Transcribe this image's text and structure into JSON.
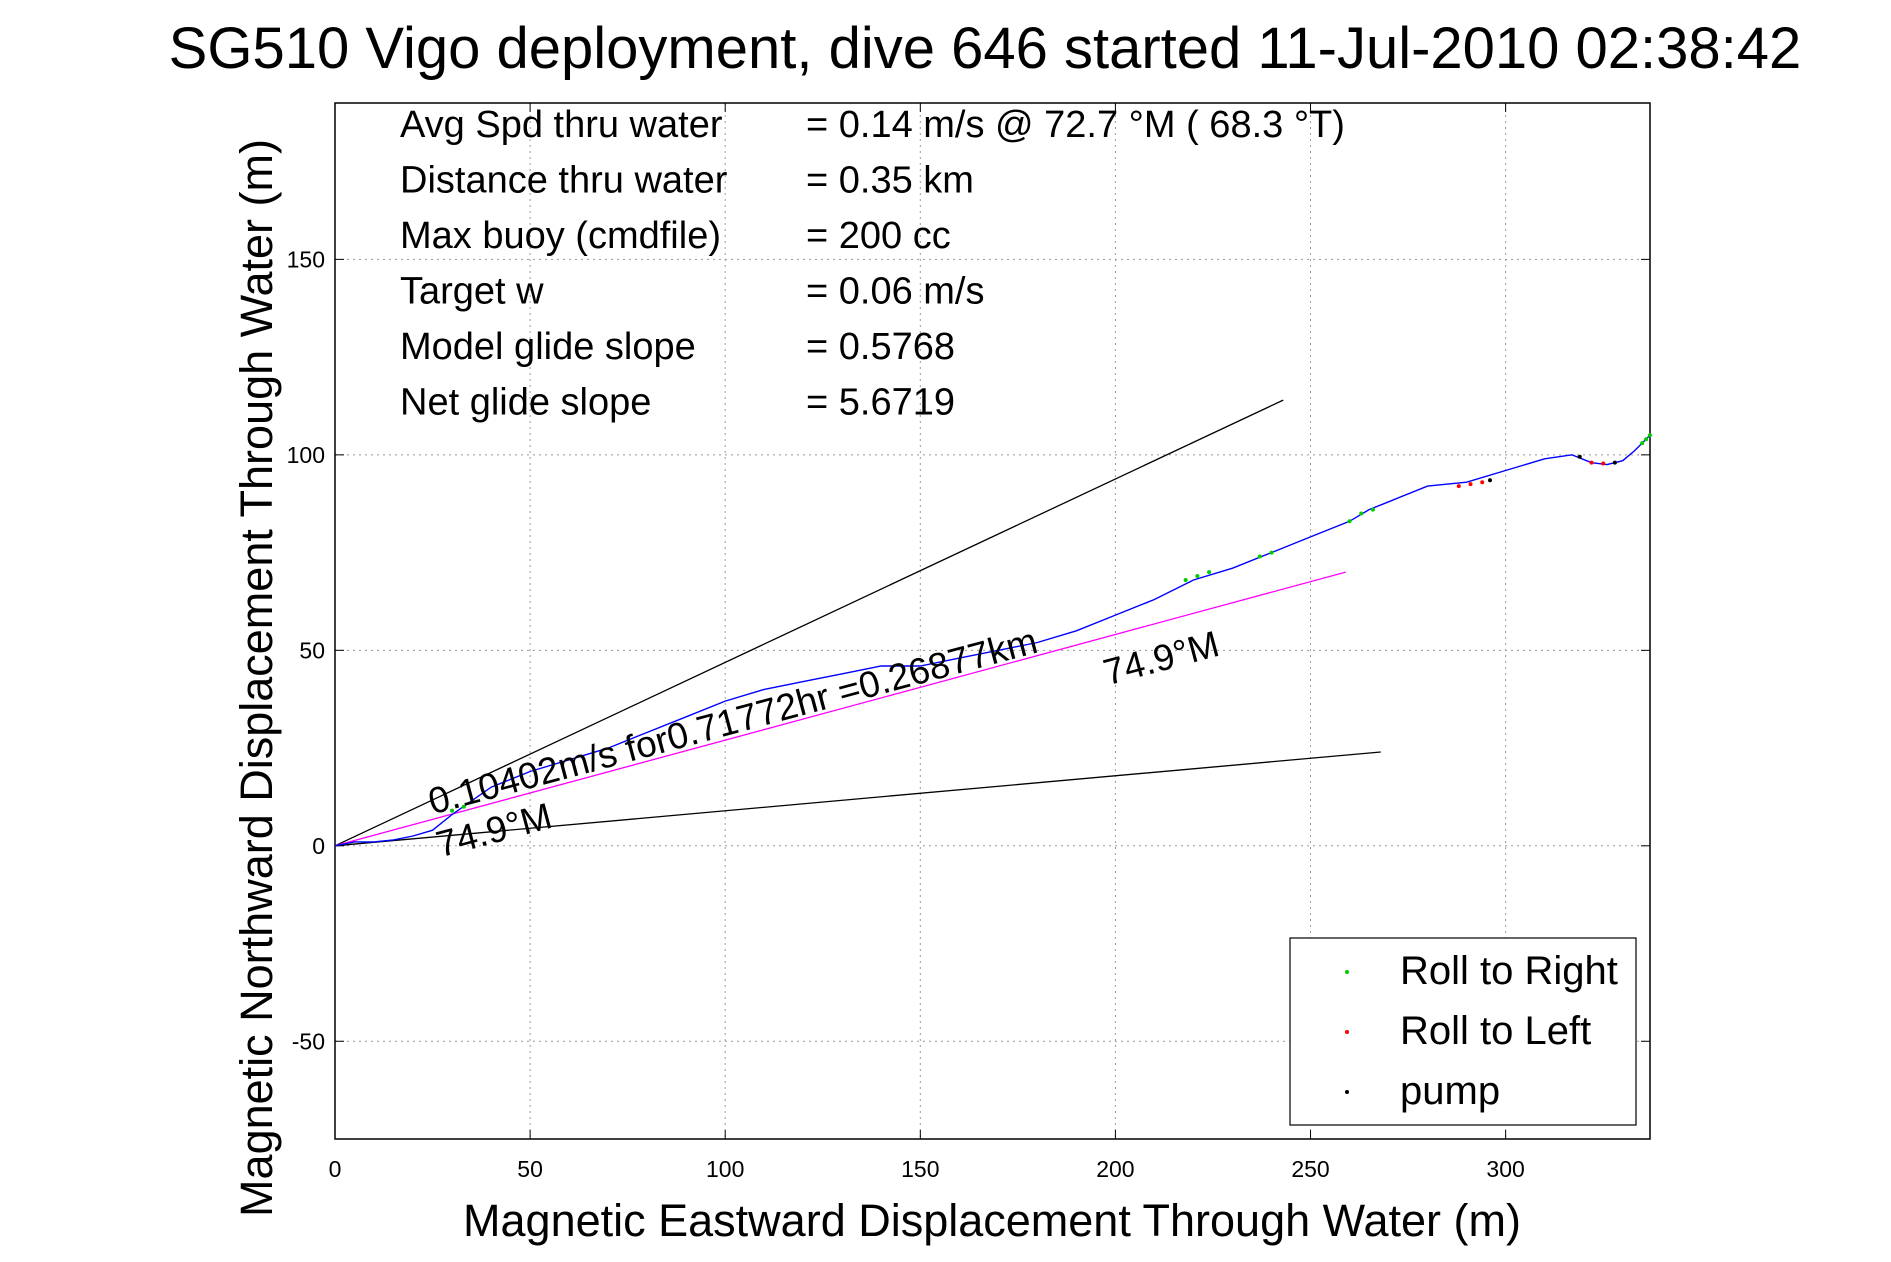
{
  "chart_data": {
    "type": "line",
    "title": "SG510 Vigo deployment, dive 646 started 11-Jul-2010 02:38:42",
    "xlabel": "Magnetic Eastward Displacement Through Water (m)",
    "ylabel": "Magnetic Northward Displacement Through Water (m)",
    "xlim": [
      0,
      337
    ],
    "ylim": [
      -75,
      190
    ],
    "xticks": [
      0,
      50,
      100,
      150,
      200,
      250,
      300
    ],
    "yticks": [
      -50,
      0,
      50,
      100,
      150
    ],
    "grid": true,
    "legend_position": "bottom-right",
    "info_lines": [
      {
        "label": "Avg Spd thru water",
        "value": "=  0.14 m/s @  72.7 °M ( 68.3 °T)"
      },
      {
        "label": "Distance thru water",
        "value": "=  0.35 km"
      },
      {
        "label": "Max buoy (cmdfile)",
        "value": "= 200 cc"
      },
      {
        "label": "Target w",
        "value": "= 0.06 m/s"
      },
      {
        "label": "Model glide slope",
        "value": "= 0.5768"
      },
      {
        "label": "Net glide slope",
        "value": "= 5.6719"
      }
    ],
    "annotations": [
      {
        "text": "0.10402m/s for0.71772hr =0.26877km",
        "x": 25,
        "y": 8,
        "angle_deg": 15
      },
      {
        "text": "74.9°M",
        "x": 198,
        "y": 41,
        "angle_deg": 15
      },
      {
        "text": "74.9°M",
        "x": 27,
        "y": -3,
        "angle_deg": 15
      }
    ],
    "reference_lines": [
      {
        "name": "upper bound",
        "color": "#000000",
        "x": [
          0,
          243
        ],
        "y": [
          0,
          114
        ]
      },
      {
        "name": "lower bound",
        "color": "#000000",
        "x": [
          0,
          268
        ],
        "y": [
          0,
          24
        ]
      },
      {
        "name": "current direction",
        "color": "#ff00ff",
        "x": [
          0,
          259
        ],
        "y": [
          0,
          70
        ]
      }
    ],
    "series": [
      {
        "color": "#0000ff",
        "x": [
          0,
          5,
          10,
          15,
          20,
          25,
          30,
          40,
          50,
          60,
          70,
          80,
          90,
          100,
          110,
          120,
          130,
          140,
          150,
          160,
          170,
          180,
          190,
          200,
          210,
          220,
          230,
          240,
          250,
          260,
          265,
          270,
          280,
          290,
          300,
          310,
          317,
          322,
          326,
          330,
          333,
          337
        ],
        "y": [
          0,
          1,
          1,
          1.5,
          2.5,
          4,
          8,
          15,
          19,
          22,
          25,
          29,
          33,
          37,
          40,
          42,
          44,
          46,
          46,
          48,
          50,
          52,
          55,
          59,
          63,
          68,
          71,
          75,
          79,
          83,
          86,
          88,
          92,
          93,
          96,
          99,
          100,
          98,
          97.5,
          98.5,
          101,
          105
        ]
      },
      {
        "name": "Roll to Right",
        "color": "#00cc00",
        "marker": "dot",
        "x": [
          30,
          33,
          218,
          221,
          224,
          237,
          240,
          260,
          263,
          266,
          335,
          336,
          337
        ],
        "y": [
          9,
          10,
          68,
          69,
          70,
          74,
          75,
          83,
          85,
          86,
          103,
          104,
          105
        ]
      },
      {
        "name": "Roll to Left",
        "color": "#ff0000",
        "marker": "dot",
        "x": [
          288,
          291,
          294,
          322,
          325
        ],
        "y": [
          92,
          92.5,
          93,
          98,
          97.8
        ]
      },
      {
        "name": "pump",
        "color": "#000000",
        "marker": "dot",
        "x": [
          296,
          319,
          328
        ],
        "y": [
          93.5,
          99.5,
          98
        ]
      }
    ],
    "legend": [
      {
        "label": "Roll to Right",
        "color": "#00cc00"
      },
      {
        "label": "Roll to Left",
        "color": "#ff0000"
      },
      {
        "label": "pump",
        "color": "#000000"
      }
    ]
  }
}
